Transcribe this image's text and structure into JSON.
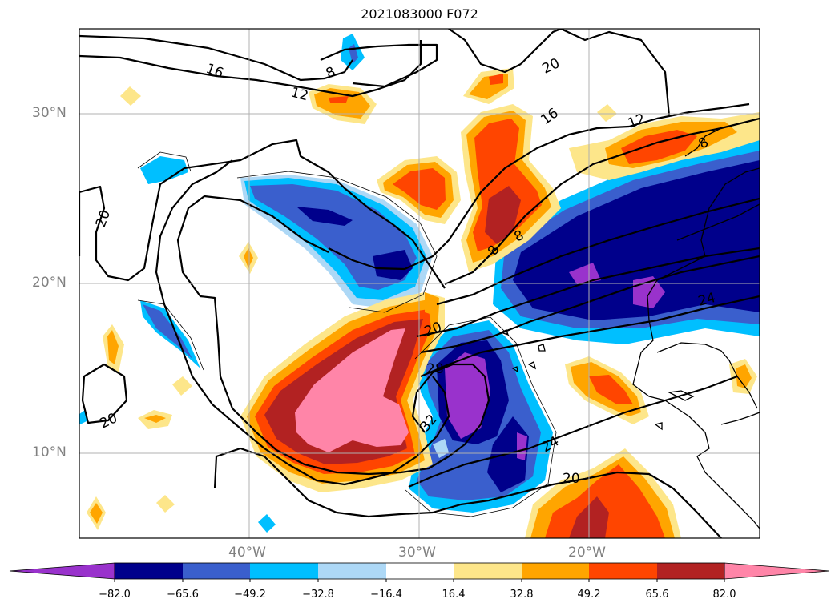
{
  "title": "2021083000 F072",
  "latitude_labels": [
    "30°N",
    "20°N",
    "10°N"
  ],
  "longitude_labels": [
    "40°W",
    "30°W",
    "20°W"
  ],
  "contour_labels": [
    "16",
    "12",
    "8",
    "20",
    "16",
    "12",
    "8",
    "20",
    "8",
    "8",
    "20",
    "28",
    "32",
    "24",
    "20",
    "24",
    "20"
  ],
  "colorbar": {
    "ticks": [
      "−82.0",
      "−65.6",
      "−49.2",
      "−32.8",
      "−16.4",
      "16.4",
      "32.8",
      "49.2",
      "65.6",
      "82.0"
    ],
    "colors": [
      "#9932cc",
      "#00008b",
      "#3a5fcd",
      "#00bfff",
      "#add8f6",
      "#ffffff",
      "#fde68a",
      "#ffa500",
      "#ff4500",
      "#b22222",
      "#ff85a8"
    ],
    "extend": "both"
  },
  "grid": true,
  "colors": {
    "grid": "#b0b0b0",
    "axis_text": "#808080",
    "contour": "#000000",
    "coastline": "#000000"
  }
}
